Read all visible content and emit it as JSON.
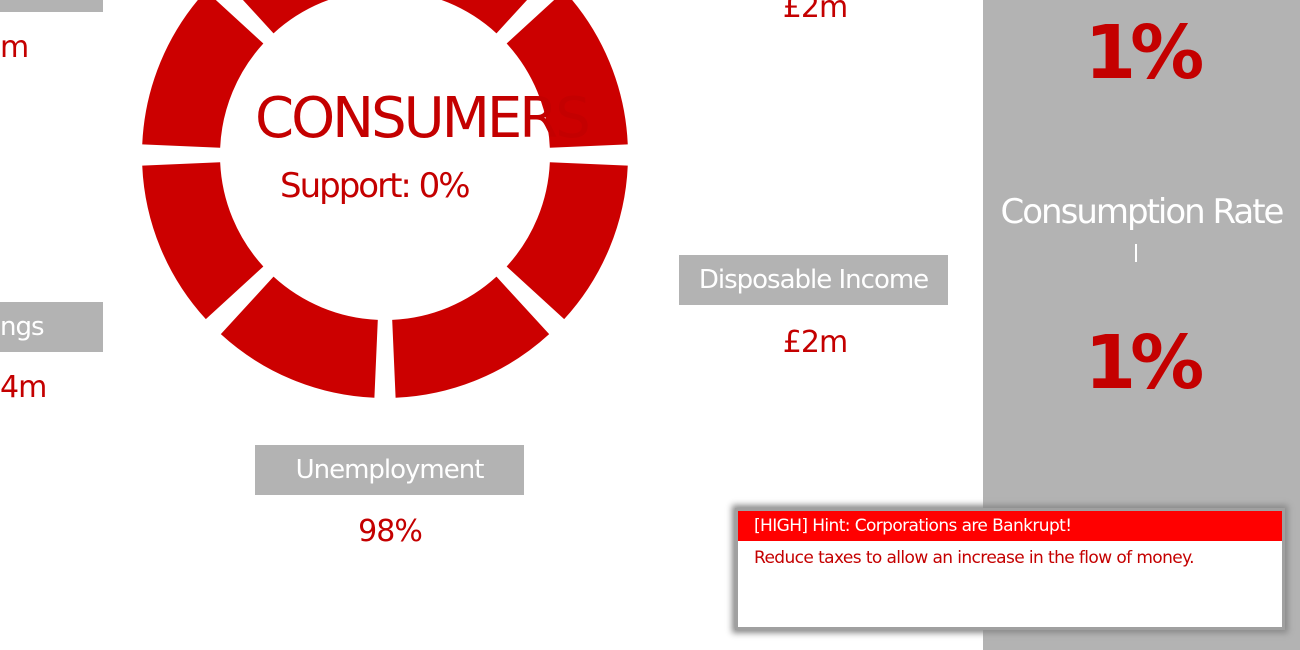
{
  "left_partial": {
    "top_value": "m",
    "savings_label": "ngs",
    "savings_value": "4m"
  },
  "ring": {
    "title": "CONSUMERS",
    "support": "Support: 0%",
    "color": "#cc0000"
  },
  "top_center": {
    "value": "£2m"
  },
  "disposable_income": {
    "label": "Disposable Income",
    "value": "£2m"
  },
  "unemployment": {
    "label": "Unemployment",
    "value": "98%"
  },
  "right_panel": {
    "top_percent": "1%",
    "consumption_rate_label": "Consumption Rate",
    "consumption_rate_value": "1%"
  },
  "hint": {
    "title": "[HIGH] Hint: Corporations are Bankrupt!",
    "message": "Reduce taxes to allow an increase in the flow of money."
  }
}
